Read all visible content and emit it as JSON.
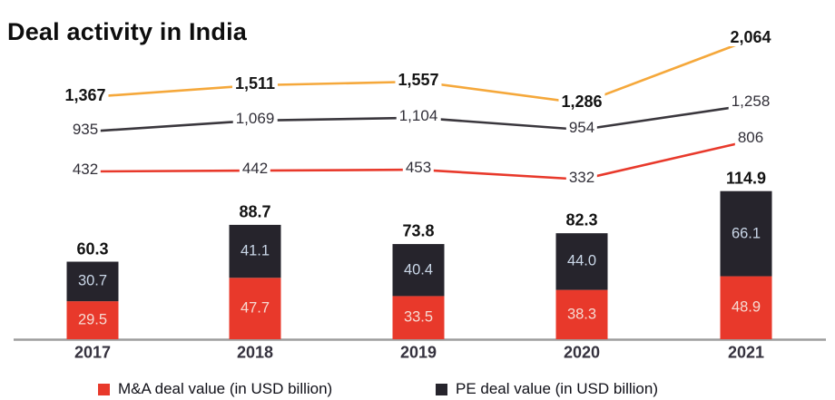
{
  "title": "Deal activity in India",
  "colors": {
    "ma_red": "#E8392B",
    "pe_black": "#26242C",
    "line_yellow": "#F5A83B",
    "line_black": "#3A373D",
    "line_red": "#E8392B",
    "axis_gray": "#9D9D9D"
  },
  "legend": [
    {
      "label": "M&A deal value (in USD billion)",
      "color_key": "ma_red"
    },
    {
      "label": "PE deal value (in USD billion)",
      "color_key": "pe_black"
    }
  ],
  "chart_data": {
    "type": "combo-stacked-bar-and-lines",
    "categories": [
      "2017",
      "2018",
      "2019",
      "2020",
      "2021"
    ],
    "bar_unit": "USD billion",
    "bar_series": [
      {
        "name": "M&A deal value (in USD billion)",
        "color_key": "ma_red",
        "values": [
          29.5,
          47.7,
          33.5,
          38.3,
          48.9
        ],
        "labels": [
          "29.5",
          "47.7",
          "33.5",
          "38.3",
          "48.9"
        ]
      },
      {
        "name": "PE deal value (in USD billion)",
        "color_key": "pe_black",
        "values": [
          30.7,
          41.1,
          40.4,
          44.0,
          66.1
        ],
        "labels": [
          "30.7",
          "41.1",
          "40.4",
          "44.0",
          "66.1"
        ]
      }
    ],
    "bar_totals": [
      "60.3",
      "88.7",
      "73.8",
      "82.3",
      "114.9"
    ],
    "line_series": [
      {
        "name": "yellow-line",
        "color_key": "line_yellow",
        "bold_labels": true,
        "values": [
          1367,
          1511,
          1557,
          1286,
          2064
        ],
        "labels": [
          "1,367",
          "1,511",
          "1,557",
          "1,286",
          "2,064"
        ]
      },
      {
        "name": "black-line",
        "color_key": "line_black",
        "bold_labels": false,
        "values": [
          935,
          1069,
          1104,
          954,
          1258
        ],
        "labels": [
          "935",
          "1,069",
          "1,104",
          "954",
          "1,258"
        ]
      },
      {
        "name": "red-line",
        "color_key": "line_red",
        "bold_labels": false,
        "values": [
          432,
          442,
          453,
          332,
          806
        ],
        "labels": [
          "432",
          "442",
          "453",
          "332",
          "806"
        ]
      }
    ]
  }
}
